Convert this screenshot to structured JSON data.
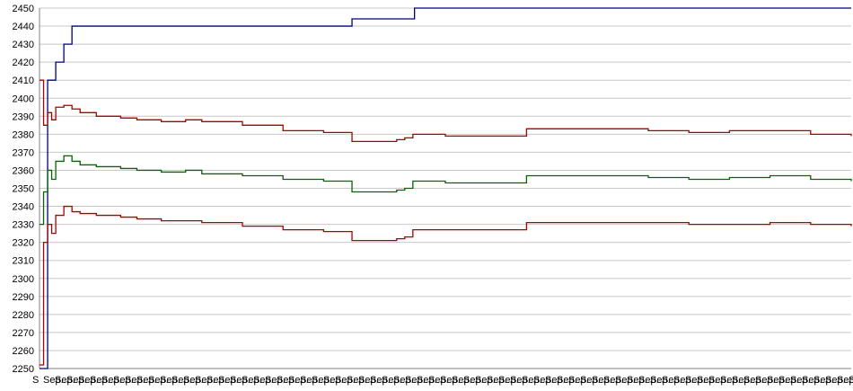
{
  "chart_data": {
    "type": "line",
    "title": "",
    "xlabel": "",
    "ylabel": "",
    "ylim": [
      2250,
      2450
    ],
    "yticks": [
      2250,
      2260,
      2270,
      2280,
      2290,
      2300,
      2310,
      2320,
      2330,
      2340,
      2350,
      2360,
      2370,
      2380,
      2390,
      2400,
      2410,
      2420,
      2430,
      2440,
      2450
    ],
    "grid": true,
    "legend": "none",
    "x_tick_labels_note_overlapping": "Sep...",
    "x_tick_label_first": "S",
    "x_index_range": [
      0,
      100
    ],
    "series": [
      {
        "color": "#000080",
        "x": [
          0,
          1,
          2,
          3,
          4,
          38,
          38.5,
          46,
          46.2,
          100
        ],
        "values": [
          2250,
          2410,
          2420,
          2430,
          2440,
          2440,
          2444,
          2444,
          2450,
          2450
        ]
      },
      {
        "color": "#aa0000",
        "x": [
          0,
          0.5,
          1,
          1.5,
          2,
          3,
          4,
          5,
          7,
          10,
          12,
          15,
          18,
          20,
          25,
          30,
          35,
          38,
          38.5,
          44,
          45,
          46,
          50,
          55,
          58,
          60,
          65,
          70,
          75,
          80,
          85,
          90,
          95,
          100
        ],
        "values": [
          2410,
          2385,
          2392,
          2388,
          2395,
          2396,
          2394,
          2392,
          2390,
          2389,
          2388,
          2387,
          2388,
          2387,
          2385,
          2382,
          2381,
          2381,
          2376,
          2377,
          2378,
          2380,
          2379,
          2379,
          2379,
          2383,
          2383,
          2383,
          2382,
          2381,
          2382,
          2382,
          2380,
          2379
        ]
      },
      {
        "color": "#006600",
        "x": [
          0,
          0.5,
          1,
          1.5,
          2,
          3,
          4,
          5,
          7,
          10,
          12,
          15,
          18,
          20,
          25,
          30,
          35,
          38,
          38.5,
          44,
          45,
          46,
          50,
          55,
          58,
          60,
          65,
          70,
          75,
          80,
          85,
          90,
          95,
          100
        ],
        "values": [
          2330,
          2348,
          2360,
          2355,
          2365,
          2368,
          2365,
          2363,
          2362,
          2361,
          2360,
          2359,
          2360,
          2358,
          2357,
          2355,
          2354,
          2354,
          2348,
          2349,
          2350,
          2354,
          2353,
          2353,
          2353,
          2357,
          2357,
          2357,
          2356,
          2355,
          2356,
          2357,
          2355,
          2354
        ]
      },
      {
        "color": "#aa0000",
        "x": [
          0,
          0.5,
          1,
          1.5,
          2,
          3,
          4,
          5,
          7,
          10,
          12,
          15,
          18,
          20,
          25,
          30,
          35,
          38,
          38.5,
          44,
          45,
          46,
          50,
          55,
          58,
          60,
          65,
          70,
          75,
          80,
          85,
          90,
          95,
          100
        ],
        "values": [
          2252,
          2320,
          2330,
          2325,
          2335,
          2340,
          2337,
          2336,
          2335,
          2334,
          2333,
          2332,
          2332,
          2331,
          2329,
          2327,
          2326,
          2326,
          2321,
          2322,
          2323,
          2327,
          2327,
          2327,
          2327,
          2331,
          2331,
          2331,
          2331,
          2330,
          2330,
          2331,
          2330,
          2329
        ]
      }
    ]
  }
}
